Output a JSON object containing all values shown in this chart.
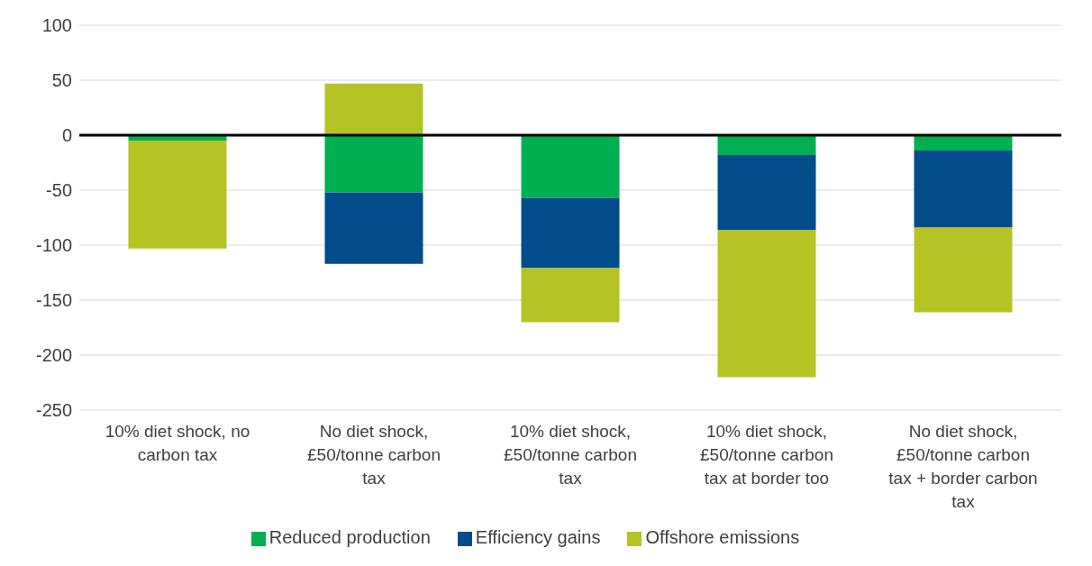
{
  "chart_data": {
    "type": "bar",
    "stacked": true,
    "categories": [
      "10% diet shock, no carbon tax",
      "No diet shock, £50/tonne carbon tax",
      "10% diet shock, £50/tonne carbon tax",
      "10% diet shock, £50/tonne carbon tax at border too",
      "No diet shock, £50/tonne carbon tax + border carbon tax"
    ],
    "series": [
      {
        "name": "Reduced production",
        "color": "#00b050",
        "values": [
          -5,
          -52,
          -57,
          -18,
          -14
        ]
      },
      {
        "name": "Efficiency gains",
        "color": "#034c8c",
        "values": [
          0,
          -65,
          -64,
          -68,
          -70
        ]
      },
      {
        "name": "Offshore emissions",
        "color": "#b5c424",
        "values": [
          -98,
          47,
          -49,
          -134,
          -77
        ]
      }
    ],
    "ylim": [
      -250,
      100
    ],
    "yticks": [
      -250,
      -200,
      -150,
      -100,
      -50,
      0,
      50,
      100
    ],
    "grid": "y",
    "legend": "bottom",
    "ref_lines": [
      {
        "axis": "y",
        "value": 0,
        "color": "#000000"
      }
    ]
  }
}
